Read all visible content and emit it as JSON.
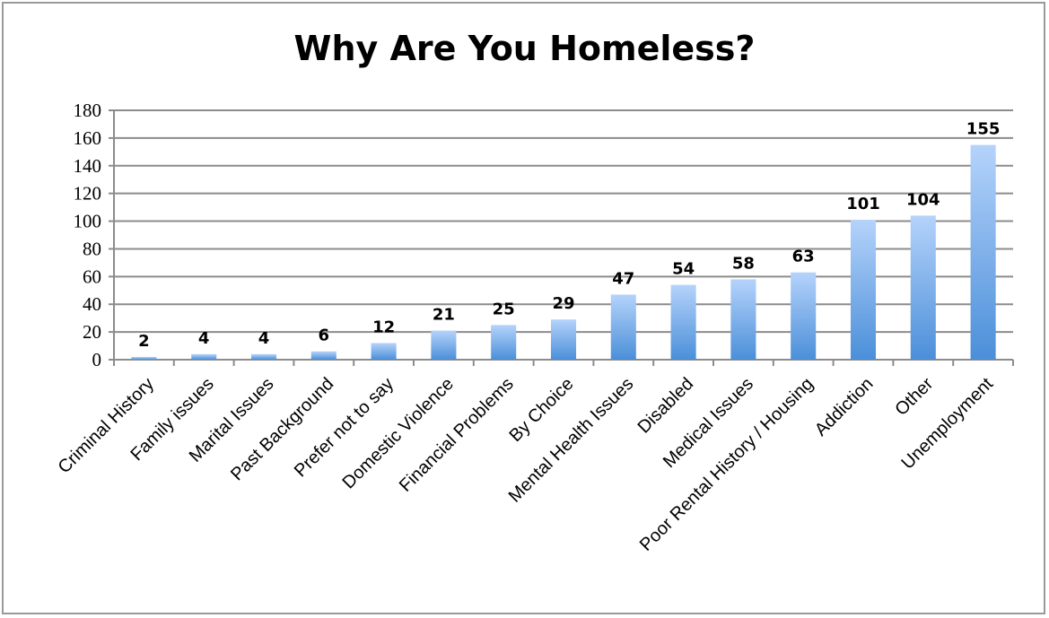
{
  "chart_data": {
    "type": "bar",
    "title": "Why Are You Homeless?",
    "xlabel": "",
    "ylabel": "",
    "ylim": [
      0,
      180
    ],
    "yticks": [
      0,
      20,
      40,
      60,
      80,
      100,
      120,
      140,
      160,
      180
    ],
    "grid": true,
    "legend": "none",
    "bar_color_top": "#b5d3fb",
    "bar_color_bottom": "#4b8fd9",
    "gridline_color": "#8c8c8c",
    "categories": [
      "Criminal History",
      "Family issues",
      "Marital Issues",
      "Past Background",
      "Prefer not to say",
      "Domestic Violence",
      "Financial Problems",
      "By Choice",
      "Mental Health Issues",
      "Disabled",
      "Medical Issues",
      "Poor Rental History / Housing",
      "Addiction",
      "Other",
      "Unemployment"
    ],
    "values": [
      2,
      4,
      4,
      6,
      12,
      21,
      25,
      29,
      47,
      54,
      58,
      63,
      101,
      104,
      155
    ]
  }
}
